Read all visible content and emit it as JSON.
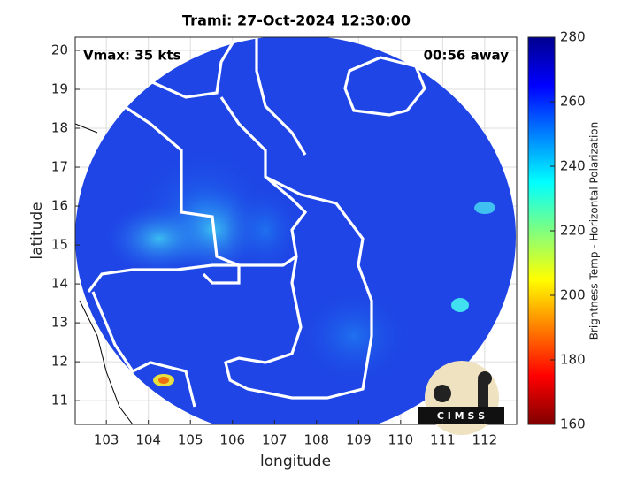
{
  "chart_data": {
    "type": "image-map",
    "title": "Trami: 27-Oct-2024 12:30:00",
    "annotations": [
      "Vmax: 35 kts",
      "00:56 away"
    ],
    "x_label": "longitude",
    "y_label": "latitude",
    "xlim": [
      102.26,
      112.76
    ],
    "ylim": [
      10.39,
      20.34
    ],
    "xticks": [
      103,
      104,
      105,
      106,
      107,
      108,
      109,
      110,
      111,
      112
    ],
    "yticks": [
      11,
      12,
      13,
      14,
      15,
      16,
      17,
      18,
      19,
      20
    ],
    "grid": true,
    "colorbar": {
      "label": "Brightness Temp - Horizontal Polarization",
      "lim": [
        160,
        280
      ],
      "ticks": [
        160,
        180,
        200,
        220,
        240,
        260,
        280
      ]
    },
    "logo_text": "C I M S S"
  }
}
